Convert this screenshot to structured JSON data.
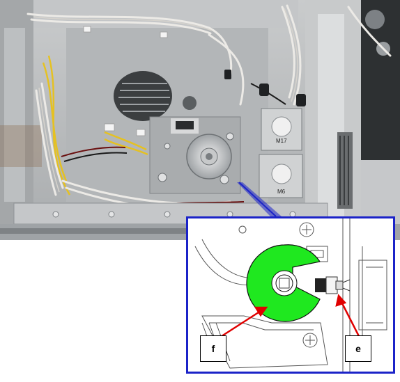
{
  "figure": {
    "photo_labels": {
      "motor_upper": "M17",
      "motor_lower": "M6"
    },
    "callouts": {
      "left": "f",
      "right": "e"
    },
    "colors": {
      "frame": "#b9bcbe",
      "frame_dark": "#8a8e91",
      "inset_border": "#1b23c8",
      "highlight": "#1fe81f",
      "arrow": "#e00000",
      "wire_yellow": "#e8c21a",
      "wire_white": "#e6e6e2"
    },
    "icons": [
      "connector-icon",
      "screw-icon",
      "gear-icon"
    ]
  }
}
